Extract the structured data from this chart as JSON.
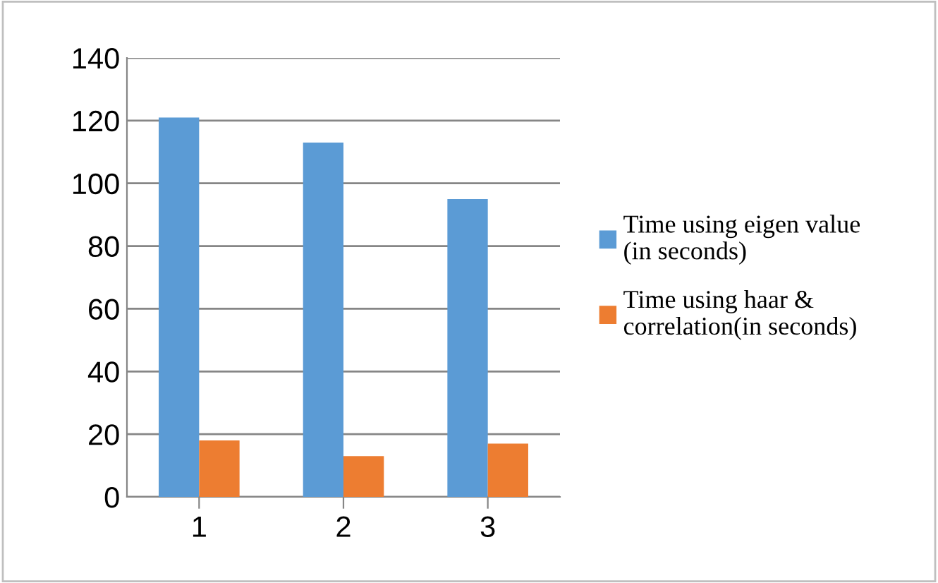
{
  "chart_data": {
    "type": "bar",
    "categories": [
      "1",
      "2",
      "3"
    ],
    "series": [
      {
        "name": "Time using eigen value (in seconds)",
        "color": "#5b9bd5",
        "values": [
          121,
          113,
          95
        ]
      },
      {
        "name": "Time using haar & correlation(in seconds)",
        "color": "#ed7d31",
        "values": [
          18,
          13,
          17
        ]
      }
    ],
    "ylim": [
      0,
      140
    ],
    "yticks": [
      0,
      20,
      40,
      60,
      80,
      100,
      120,
      140
    ],
    "grid": "y",
    "legend": "right"
  }
}
